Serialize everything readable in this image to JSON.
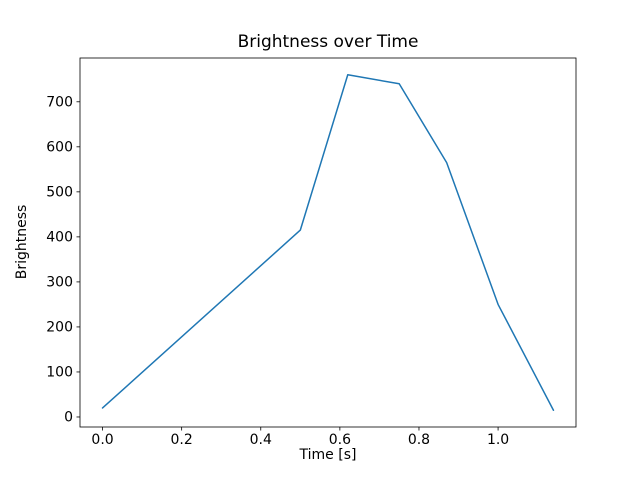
{
  "figure": {
    "title": "Brightness over Time",
    "xlabel": "Time [s]",
    "ylabel": "Brightness"
  },
  "chart_data": {
    "type": "line",
    "title": "Brightness over Time",
    "xlabel": "Time [s]",
    "ylabel": "Brightness",
    "x": [
      0.0,
      0.5,
      0.62,
      0.75,
      0.87,
      1.0,
      1.14
    ],
    "y": [
      20,
      415,
      760,
      740,
      565,
      250,
      15
    ],
    "xlim": [
      -0.057,
      1.197
    ],
    "ylim": [
      -22.25,
      797.25
    ],
    "xticks": [
      0.0,
      0.2,
      0.4,
      0.6,
      0.8,
      1.0
    ],
    "xtick_labels": [
      "0.0",
      "0.2",
      "0.4",
      "0.6",
      "0.8",
      "1.0"
    ],
    "yticks": [
      0,
      100,
      200,
      300,
      400,
      500,
      600,
      700
    ],
    "ytick_labels": [
      "0",
      "100",
      "200",
      "300",
      "400",
      "500",
      "600",
      "700"
    ],
    "line_color": "#1f77b4",
    "axes_color": "#000000",
    "background": "#ffffff",
    "grid": false,
    "legend": null
  }
}
